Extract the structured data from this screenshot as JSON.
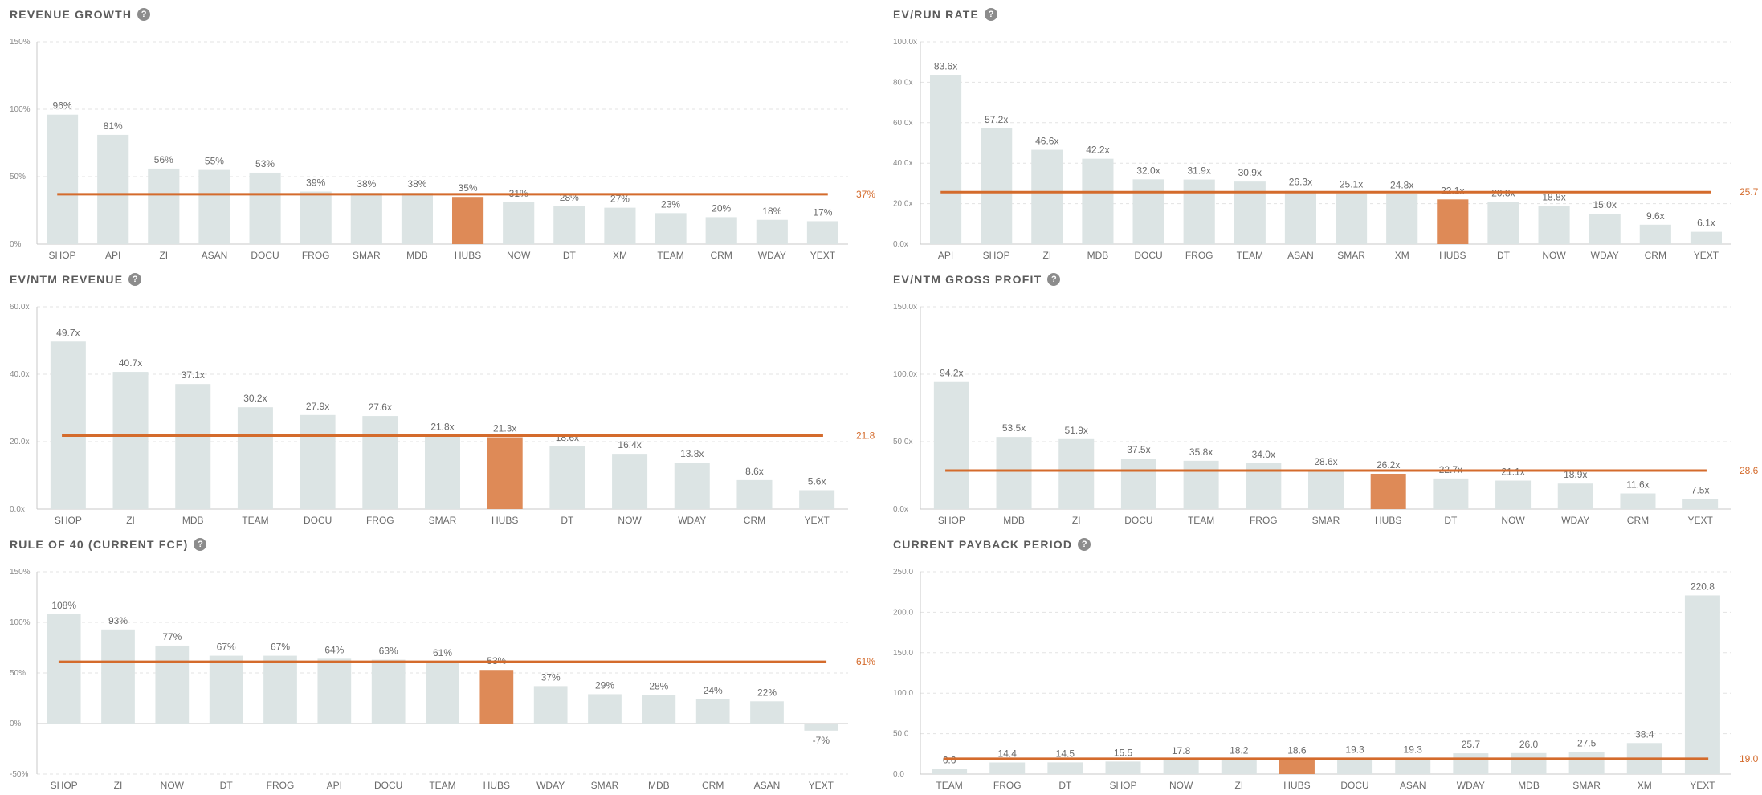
{
  "colors": {
    "bar": "#dce4e4",
    "highlight": "#de8a57",
    "reference": "#d46b2c",
    "grid": "#e3e3e3",
    "axis": "#c9c9c9"
  },
  "help_icon": {
    "icon": "question-circle-icon",
    "glyph": "?"
  },
  "chart_data": [
    {
      "id": "revenue-growth",
      "type": "bar",
      "title": "REVENUE GROWTH",
      "categories": [
        "SHOP",
        "API",
        "ZI",
        "ASAN",
        "DOCU",
        "FROG",
        "SMAR",
        "MDB",
        "HUBS",
        "NOW",
        "DT",
        "XM",
        "TEAM",
        "CRM",
        "WDAY",
        "YEXT"
      ],
      "values": [
        96,
        81,
        56,
        55,
        53,
        39,
        38,
        38,
        35,
        31,
        28,
        27,
        23,
        20,
        18,
        17
      ],
      "labels": [
        "96%",
        "81%",
        "56%",
        "55%",
        "53%",
        "39%",
        "38%",
        "38%",
        "35%",
        "31%",
        "28%",
        "27%",
        "23%",
        "20%",
        "18%",
        "17%"
      ],
      "highlight": "HUBS",
      "reference": {
        "value": 37,
        "label": "37%"
      },
      "ylim": [
        0,
        150
      ],
      "yticks": [
        0,
        50,
        100,
        150
      ],
      "ytick_labels": [
        "0%",
        "50%",
        "100%",
        "150%"
      ],
      "grid": true
    },
    {
      "id": "ev-run-rate",
      "type": "bar",
      "title": "EV/RUN RATE",
      "categories": [
        "API",
        "SHOP",
        "ZI",
        "MDB",
        "DOCU",
        "FROG",
        "TEAM",
        "ASAN",
        "SMAR",
        "XM",
        "HUBS",
        "DT",
        "NOW",
        "WDAY",
        "CRM",
        "YEXT"
      ],
      "values": [
        83.6,
        57.2,
        46.6,
        42.2,
        32.0,
        31.9,
        30.9,
        26.3,
        25.1,
        24.8,
        22.1,
        20.8,
        18.8,
        15.0,
        9.6,
        6.1
      ],
      "labels": [
        "83.6x",
        "57.2x",
        "46.6x",
        "42.2x",
        "32.0x",
        "31.9x",
        "30.9x",
        "26.3x",
        "25.1x",
        "24.8x",
        "22.1x",
        "20.8x",
        "18.8x",
        "15.0x",
        "9.6x",
        "6.1x"
      ],
      "highlight": "HUBS",
      "reference": {
        "value": 25.7,
        "label": "25.7"
      },
      "ylim": [
        0,
        100
      ],
      "yticks": [
        0,
        20,
        40,
        60,
        80,
        100
      ],
      "ytick_labels": [
        "0.0x",
        "20.0x",
        "40.0x",
        "60.0x",
        "80.0x",
        "100.0x"
      ],
      "grid": true
    },
    {
      "id": "ev-ntm-revenue",
      "type": "bar",
      "title": "EV/NTM REVENUE",
      "categories": [
        "SHOP",
        "ZI",
        "MDB",
        "TEAM",
        "DOCU",
        "FROG",
        "SMAR",
        "HUBS",
        "DT",
        "NOW",
        "WDAY",
        "CRM",
        "YEXT"
      ],
      "values": [
        49.7,
        40.7,
        37.1,
        30.2,
        27.9,
        27.6,
        21.8,
        21.3,
        18.6,
        16.4,
        13.8,
        8.6,
        5.6
      ],
      "labels": [
        "49.7x",
        "40.7x",
        "37.1x",
        "30.2x",
        "27.9x",
        "27.6x",
        "21.8x",
        "21.3x",
        "18.6x",
        "16.4x",
        "13.8x",
        "8.6x",
        "5.6x"
      ],
      "highlight": "HUBS",
      "reference": {
        "value": 21.8,
        "label": "21.8"
      },
      "ylim": [
        0,
        60
      ],
      "yticks": [
        0,
        20,
        40,
        60
      ],
      "ytick_labels": [
        "0.0x",
        "20.0x",
        "40.0x",
        "60.0x"
      ],
      "grid": true
    },
    {
      "id": "ev-ntm-gross-profit",
      "type": "bar",
      "title": "EV/NTM GROSS PROFIT",
      "categories": [
        "SHOP",
        "MDB",
        "ZI",
        "DOCU",
        "TEAM",
        "FROG",
        "SMAR",
        "HUBS",
        "DT",
        "NOW",
        "WDAY",
        "CRM",
        "YEXT"
      ],
      "values": [
        94.2,
        53.5,
        51.9,
        37.5,
        35.8,
        34.0,
        28.6,
        26.2,
        22.7,
        21.1,
        18.9,
        11.6,
        7.5
      ],
      "labels": [
        "94.2x",
        "53.5x",
        "51.9x",
        "37.5x",
        "35.8x",
        "34.0x",
        "28.6x",
        "26.2x",
        "22.7x",
        "21.1x",
        "18.9x",
        "11.6x",
        "7.5x"
      ],
      "highlight": "HUBS",
      "reference": {
        "value": 28.6,
        "label": "28.6"
      },
      "ylim": [
        0,
        150
      ],
      "yticks": [
        0,
        50,
        100,
        150
      ],
      "ytick_labels": [
        "0.0x",
        "50.0x",
        "100.0x",
        "150.0x"
      ],
      "grid": true
    },
    {
      "id": "rule-of-40",
      "type": "bar",
      "title": "RULE OF 40 (CURRENT FCF)",
      "categories": [
        "SHOP",
        "ZI",
        "NOW",
        "DT",
        "FROG",
        "API",
        "DOCU",
        "TEAM",
        "HUBS",
        "WDAY",
        "SMAR",
        "MDB",
        "CRM",
        "ASAN",
        "YEXT"
      ],
      "values": [
        108,
        93,
        77,
        67,
        67,
        64,
        63,
        61,
        53,
        37,
        29,
        28,
        24,
        22,
        -7
      ],
      "labels": [
        "108%",
        "93%",
        "77%",
        "67%",
        "67%",
        "64%",
        "63%",
        "61%",
        "53%",
        "37%",
        "29%",
        "28%",
        "24%",
        "22%",
        "-7%"
      ],
      "highlight": "HUBS",
      "reference": {
        "value": 61,
        "label": "61%"
      },
      "ylim": [
        -50,
        150
      ],
      "yticks": [
        -50,
        0,
        50,
        100,
        150
      ],
      "ytick_labels": [
        "-50%",
        "0%",
        "50%",
        "100%",
        "150%"
      ],
      "grid": true
    },
    {
      "id": "current-payback-period",
      "type": "bar",
      "title": "CURRENT PAYBACK PERIOD",
      "categories": [
        "TEAM",
        "FROG",
        "DT",
        "SHOP",
        "NOW",
        "ZI",
        "HUBS",
        "DOCU",
        "ASAN",
        "WDAY",
        "MDB",
        "SMAR",
        "XM",
        "YEXT"
      ],
      "values": [
        6.6,
        14.4,
        14.5,
        15.5,
        17.8,
        18.2,
        18.6,
        19.3,
        19.3,
        25.7,
        26.0,
        27.5,
        38.4,
        220.8
      ],
      "labels": [
        "6.6",
        "14.4",
        "14.5",
        "15.5",
        "17.8",
        "18.2",
        "18.6",
        "19.3",
        "19.3",
        "25.7",
        "26.0",
        "27.5",
        "38.4",
        "220.8"
      ],
      "highlight": "HUBS",
      "reference": {
        "value": 19.0,
        "label": "19.0"
      },
      "ylim": [
        0,
        250
      ],
      "yticks": [
        0,
        50,
        100,
        150,
        200,
        250
      ],
      "ytick_labels": [
        "0.0",
        "50.0",
        "100.0",
        "150.0",
        "200.0",
        "250.0"
      ],
      "grid": true
    }
  ]
}
